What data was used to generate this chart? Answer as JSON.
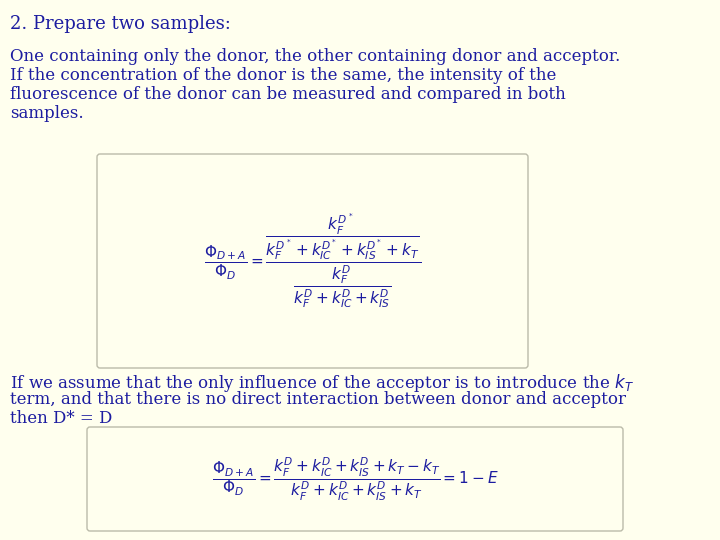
{
  "background_color": "#FFFFEE",
  "title": "2. Prepare two samples:",
  "title_color": "#1C1CA0",
  "title_fontsize": 13,
  "body_color": "#1C1CA0",
  "body_fontsize": 12,
  "para1_lines": [
    "One containing only the donor, the other containing donor and acceptor.",
    "If the concentration of the donor is the same, the intensity of the",
    "fluorescence of the donor can be measured and compared in both",
    "samples."
  ],
  "para2_lines": [
    "If we assume that the only influence of the acceptor is to introduce the $k_T$",
    "term, and that there is no direct interaction between donor and acceptor",
    "then D* = D"
  ],
  "formula1": "$\\dfrac{\\Phi_{D+A}}{\\Phi_{D}} = \\dfrac{\\dfrac{k_F^{D^*}}{k_F^{D^*} + k_{IC}^{D^*} + k_{IS}^{D^*} + k_T}}{\\dfrac{k_F^{D}}{k_F^{D} + k_{IC}^{D} + k_{IS}^{D}}}$",
  "formula2": "$\\dfrac{\\Phi_{D+A}}{\\Phi_{D}} = \\dfrac{k_F^{D} + k_{IC}^{D} + k_{IS}^{D} + k_T - k_T}{k_F^{D} + k_{IC}^{D} + k_{IS}^{D} + k_T} = 1 - E$",
  "formula_color": "#1C1CA0",
  "box_edge_color": "#BBBBAA"
}
